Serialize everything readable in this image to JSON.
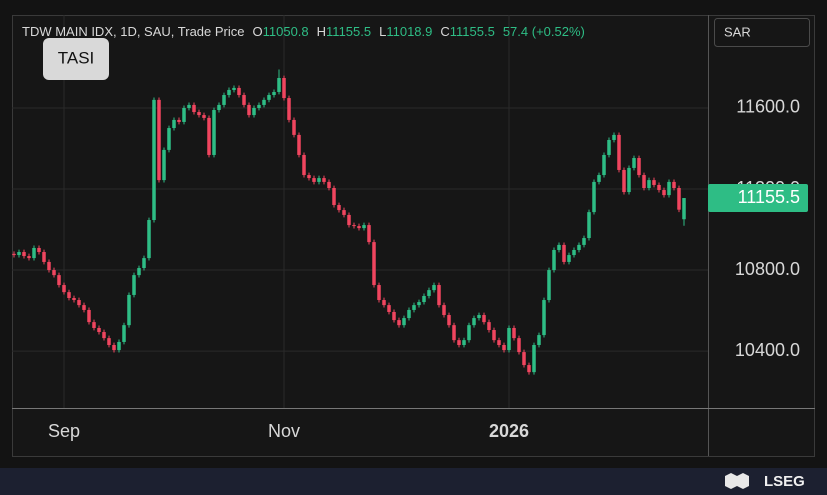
{
  "header": {
    "symbol": "TDW MAIN IDX, 1D, SAU, Trade Price",
    "ohlc_labels": [
      "O",
      "H",
      "L",
      "C"
    ],
    "change": "57.4 (+0.52%)"
  },
  "badge": "TASI",
  "currency": "SAR",
  "brand": "LSEG",
  "chart_data": {
    "type": "candlestick",
    "categories": [
      null,
      null,
      null,
      null,
      null,
      null,
      null,
      null,
      null,
      null,
      "Sep",
      null,
      null,
      null,
      null,
      null,
      null,
      null,
      null,
      null,
      null,
      null,
      null,
      null,
      null,
      null,
      null,
      null,
      null,
      null,
      null,
      null,
      null,
      null,
      null,
      null,
      null,
      null,
      null,
      null,
      null,
      null,
      null,
      null,
      null,
      null,
      null,
      null,
      null,
      null,
      null,
      null,
      null,
      null,
      "Nov",
      null,
      null,
      null,
      null,
      null,
      null,
      null,
      null,
      null,
      null,
      null,
      null,
      null,
      null,
      null,
      null,
      null,
      null,
      null,
      null,
      null,
      null,
      null,
      null,
      null,
      null,
      null,
      null,
      null,
      null,
      null,
      null,
      null,
      null,
      null,
      null,
      null,
      null,
      null,
      null,
      null,
      null,
      null,
      null,
      "2026",
      null,
      null,
      null,
      null,
      null,
      null,
      null,
      null,
      null,
      null,
      null,
      null,
      null,
      null,
      null,
      null,
      null,
      null,
      null,
      null,
      null,
      null,
      null,
      null,
      null,
      null,
      null,
      null,
      null,
      null,
      null,
      null,
      null,
      null,
      null
    ],
    "open": [
      10880,
      10874,
      10889,
      10869,
      10859,
      10909,
      10889,
      10840,
      10800,
      10775,
      10726,
      10691,
      10662,
      10652,
      10627,
      10603,
      10543,
      10514,
      10494,
      10464,
      10430,
      10405,
      10445,
      10528,
      10677,
      10775,
      10810,
      10859,
      11047,
      11640,
      11244,
      11393,
      11501,
      11541,
      11531,
      11600,
      11615,
      11580,
      11565,
      11551,
      11368,
      11590,
      11615,
      11664,
      11689,
      11699,
      11664,
      11615,
      11565,
      11600,
      11615,
      11640,
      11664,
      11679,
      11748,
      11649,
      11541,
      11467,
      11368,
      11269,
      11254,
      11235,
      11254,
      11235,
      11205,
      11121,
      11096,
      11072,
      11022,
      11017,
      11007,
      11022,
      10938,
      10726,
      10652,
      10627,
      10593,
      10553,
      10528,
      10563,
      10603,
      10627,
      10642,
      10672,
      10701,
      10726,
      10627,
      10578,
      10528,
      10454,
      10430,
      10454,
      10528,
      10563,
      10578,
      10543,
      10504,
      10454,
      10430,
      10405,
      10514,
      10464,
      10395,
      10331,
      10296,
      10430,
      10479,
      10652,
      10800,
      10899,
      10924,
      10840,
      10874,
      10899,
      10924,
      10958,
      11086,
      11235,
      11269,
      11368,
      11442,
      11467,
      11294,
      11185,
      11304,
      11353,
      11269,
      11205,
      11244,
      11220,
      11195,
      11170,
      11235,
      11205,
      11050.8
    ],
    "high": [
      10892,
      10901,
      10901,
      10881,
      10921,
      10921,
      10901,
      10852,
      10812,
      10787,
      10738,
      10703,
      10674,
      10664,
      10639,
      10615,
      10555,
      10526,
      10506,
      10476,
      10442,
      10457,
      10540,
      10689,
      10787,
      10822,
      10871,
      11059,
      11652,
      11652,
      11405,
      11513,
      11553,
      11553,
      11612,
      11627,
      11627,
      11592,
      11577,
      11563,
      11602,
      11627,
      11676,
      11701,
      11711,
      11711,
      11676,
      11627,
      11612,
      11627,
      11652,
      11676,
      11691,
      11790,
      11760,
      11661,
      11553,
      11479,
      11380,
      11281,
      11266,
      11266,
      11266,
      11247,
      11217,
      11133,
      11108,
      11084,
      11034,
      11029,
      11034,
      11034,
      10950,
      10738,
      10664,
      10639,
      10605,
      10565,
      10575,
      10615,
      10639,
      10654,
      10684,
      10713,
      10738,
      10738,
      10639,
      10590,
      10540,
      10466,
      10466,
      10540,
      10575,
      10590,
      10590,
      10555,
      10516,
      10466,
      10442,
      10526,
      10526,
      10476,
      10407,
      10343,
      10442,
      10491,
      10664,
      10812,
      10911,
      10936,
      10936,
      10886,
      10911,
      10936,
      10970,
      11098,
      11247,
      11281,
      11380,
      11454,
      11479,
      11479,
      11306,
      11316,
      11365,
      11365,
      11281,
      11256,
      11256,
      11232,
      11207,
      11247,
      11247,
      11217,
      11155.5
    ],
    "low": [
      10862,
      10862,
      10857,
      10847,
      10847,
      10877,
      10828,
      10788,
      10763,
      10714,
      10679,
      10650,
      10640,
      10615,
      10591,
      10531,
      10502,
      10482,
      10452,
      10418,
      10393,
      10393,
      10433,
      10516,
      10665,
      10763,
      10798,
      10847,
      11035,
      11232,
      11232,
      11381,
      11489,
      11519,
      11519,
      11588,
      11568,
      11553,
      11539,
      11356,
      11356,
      11578,
      11603,
      11652,
      11677,
      11652,
      11603,
      11553,
      11553,
      11588,
      11603,
      11628,
      11652,
      11667,
      11637,
      11529,
      11455,
      11356,
      11257,
      11242,
      11223,
      11223,
      11223,
      11193,
      11109,
      11084,
      11060,
      11010,
      11005,
      10995,
      10995,
      10926,
      10714,
      10640,
      10615,
      10581,
      10541,
      10516,
      10516,
      10551,
      10591,
      10615,
      10630,
      10660,
      10689,
      10615,
      10566,
      10516,
      10442,
      10418,
      10418,
      10442,
      10516,
      10551,
      10531,
      10492,
      10442,
      10418,
      10393,
      10393,
      10452,
      10383,
      10319,
      10284,
      10284,
      10418,
      10467,
      10640,
      10788,
      10887,
      10828,
      10828,
      10862,
      10887,
      10912,
      10946,
      11074,
      11223,
      11257,
      11356,
      11430,
      11282,
      11173,
      11173,
      11292,
      11257,
      11193,
      11193,
      11208,
      11183,
      11158,
      11158,
      11193,
      11086,
      11018.9
    ],
    "close": [
      10874,
      10889,
      10869,
      10859,
      10909,
      10889,
      10840,
      10800,
      10775,
      10726,
      10691,
      10662,
      10652,
      10627,
      10603,
      10543,
      10514,
      10494,
      10464,
      10430,
      10405,
      10445,
      10528,
      10677,
      10775,
      10810,
      10859,
      11047,
      11640,
      11244,
      11393,
      11501,
      11541,
      11531,
      11600,
      11615,
      11580,
      11565,
      11551,
      11368,
      11590,
      11615,
      11664,
      11689,
      11699,
      11664,
      11615,
      11565,
      11600,
      11615,
      11640,
      11664,
      11679,
      11748,
      11649,
      11541,
      11467,
      11368,
      11269,
      11254,
      11235,
      11254,
      11235,
      11205,
      11121,
      11096,
      11072,
      11022,
      11017,
      11007,
      11022,
      10938,
      10726,
      10652,
      10627,
      10593,
      10553,
      10528,
      10563,
      10603,
      10627,
      10642,
      10672,
      10701,
      10726,
      10627,
      10578,
      10528,
      10454,
      10430,
      10454,
      10528,
      10563,
      10578,
      10543,
      10504,
      10454,
      10430,
      10405,
      10514,
      10464,
      10395,
      10331,
      10296,
      10430,
      10479,
      10652,
      10800,
      10899,
      10924,
      10840,
      10874,
      10899,
      10924,
      10958,
      11086,
      11235,
      11269,
      11368,
      11442,
      11467,
      11294,
      11185,
      11304,
      11353,
      11269,
      11205,
      11244,
      11220,
      11195,
      11170,
      11235,
      11205,
      11098,
      11155.5
    ],
    "up_color": "#2ebd85",
    "down_color": "#f0455f",
    "ylim": [
      10119,
      12059
    ],
    "yticks": [
      {
        "value": 10400,
        "label": "10400.0"
      },
      {
        "value": 10800,
        "label": "10800.0"
      },
      {
        "value": 11200,
        "label": "11200.0"
      },
      {
        "value": 11600,
        "label": "11600.0"
      }
    ],
    "grid": true
  }
}
